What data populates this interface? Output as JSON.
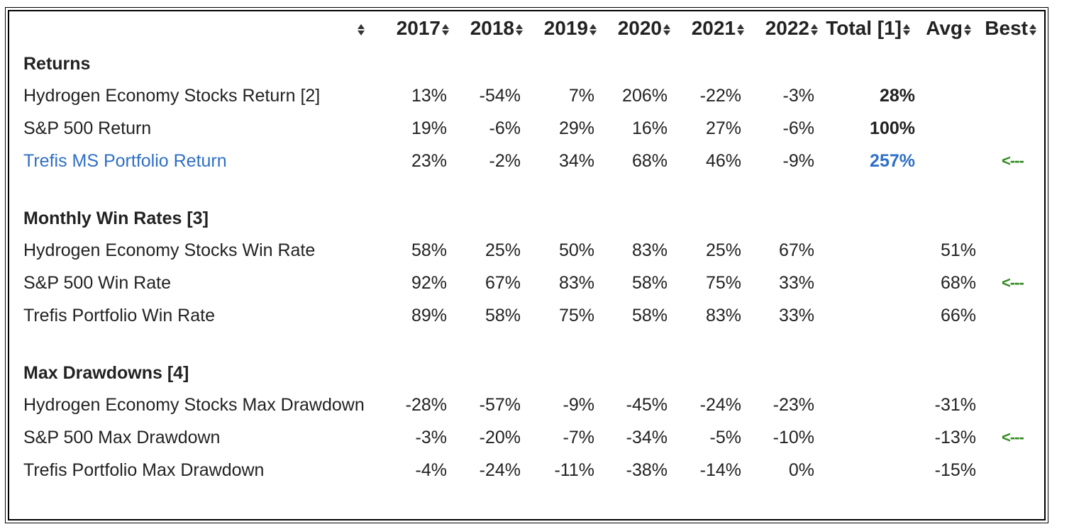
{
  "header": {
    "columns": [
      "2017",
      "2018",
      "2019",
      "2020",
      "2021",
      "2022",
      "Total [1]",
      "Avg",
      "Best"
    ]
  },
  "sections": [
    {
      "title": "Returns",
      "rows": [
        {
          "label": "Hydrogen Economy Stocks Return [2]",
          "values": [
            "13%",
            "-54%",
            "7%",
            "206%",
            "-22%",
            "-3%"
          ],
          "total": "28%",
          "avg": "",
          "best": ""
        },
        {
          "label": "S&P 500 Return",
          "values": [
            "19%",
            "-6%",
            "29%",
            "16%",
            "27%",
            "-6%"
          ],
          "total": "100%",
          "avg": "",
          "best": ""
        },
        {
          "label": "Trefis MS Portfolio Return",
          "values": [
            "23%",
            "-2%",
            "34%",
            "68%",
            "46%",
            "-9%"
          ],
          "total": "257%",
          "avg": "",
          "best": "<---",
          "highlight": true
        }
      ]
    },
    {
      "title": "Monthly Win Rates [3]",
      "rows": [
        {
          "label": "Hydrogen Economy Stocks Win Rate",
          "values": [
            "58%",
            "25%",
            "50%",
            "83%",
            "25%",
            "67%"
          ],
          "total": "",
          "avg": "51%",
          "best": ""
        },
        {
          "label": "S&P 500 Win Rate",
          "values": [
            "92%",
            "67%",
            "83%",
            "58%",
            "75%",
            "33%"
          ],
          "total": "",
          "avg": "68%",
          "best": "<---"
        },
        {
          "label": "Trefis Portfolio Win Rate",
          "values": [
            "89%",
            "58%",
            "75%",
            "58%",
            "83%",
            "33%"
          ],
          "total": "",
          "avg": "66%",
          "best": ""
        }
      ]
    },
    {
      "title": "Max Drawdowns [4]",
      "rows": [
        {
          "label": "Hydrogen Economy Stocks Max Drawdown",
          "values": [
            "-28%",
            "-57%",
            "-9%",
            "-45%",
            "-24%",
            "-23%"
          ],
          "total": "",
          "avg": "-31%",
          "best": ""
        },
        {
          "label": "S&P 500 Max Drawdown",
          "values": [
            "-3%",
            "-20%",
            "-7%",
            "-34%",
            "-5%",
            "-10%"
          ],
          "total": "",
          "avg": "-13%",
          "best": "<---"
        },
        {
          "label": "Trefis Portfolio Max Drawdown",
          "values": [
            "-4%",
            "-24%",
            "-11%",
            "-38%",
            "-14%",
            "0%"
          ],
          "total": "",
          "avg": "-15%",
          "best": ""
        }
      ]
    }
  ],
  "colors": {
    "highlight": "#2f6fc5",
    "best_marker": "#2e8b1e",
    "border": "#000000"
  }
}
